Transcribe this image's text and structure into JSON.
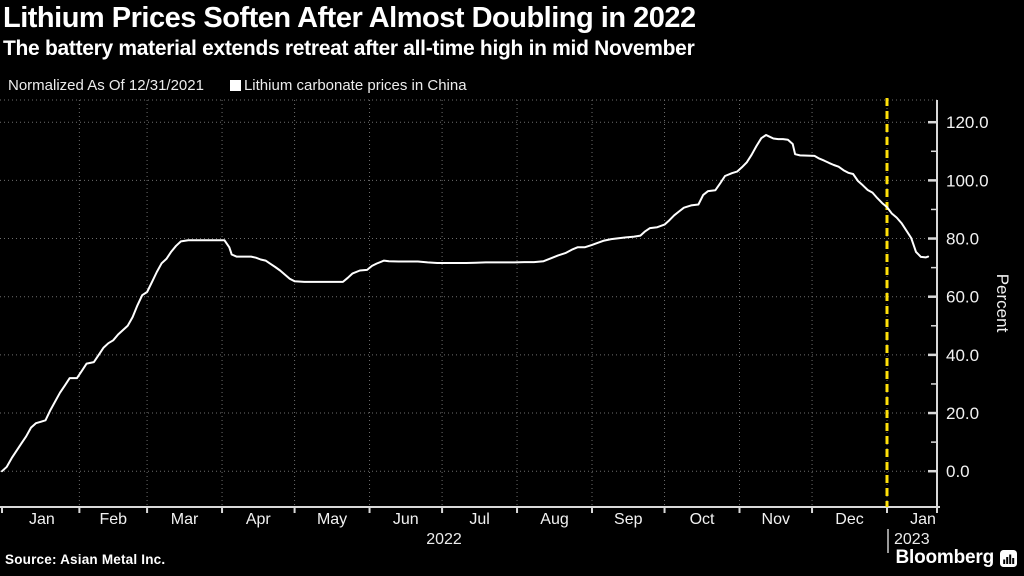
{
  "chart_data": {
    "type": "line",
    "title": "Lithium Prices Soften After Almost Doubling in 2022",
    "subtitle": "The battery material extends retreat after all-time high in mid November",
    "note": "Normalized As Of 12/31/2021",
    "legend": [
      {
        "label": "Lithium carbonate prices in China",
        "color": "#ffffff"
      }
    ],
    "ylabel": "Percent",
    "y_major_ticks": [
      0,
      20,
      40,
      60,
      80,
      100,
      120
    ],
    "y_tick_labels": [
      "0.0",
      "20.0",
      "40.0",
      "60.0",
      "80.0",
      "100.0",
      "120.0"
    ],
    "y_minor_step": 10,
    "ylim": [
      -13,
      128
    ],
    "grid": "dotted",
    "x_month_labels": [
      "Jan",
      "Feb",
      "Mar",
      "Apr",
      "May",
      "Jun",
      "Jul",
      "Aug",
      "Sep",
      "Oct",
      "Nov",
      "Dec",
      "Jan"
    ],
    "x_year_labels": [
      "2022",
      "2023"
    ],
    "event_line": {
      "at_day": 366,
      "color": "#ffe10a",
      "style": "dashed"
    },
    "series": [
      {
        "name": "Lithium carbonate prices in China",
        "color": "#ffffff",
        "points_day_value": [
          [
            0,
            0
          ],
          [
            2,
            1.5
          ],
          [
            4,
            4.5
          ],
          [
            6,
            7
          ],
          [
            8,
            9.5
          ],
          [
            10,
            12
          ],
          [
            12,
            15
          ],
          [
            14,
            16.5
          ],
          [
            16,
            17
          ],
          [
            18,
            17.5
          ],
          [
            20,
            21
          ],
          [
            22,
            24
          ],
          [
            24,
            27
          ],
          [
            26,
            29.5
          ],
          [
            28,
            32
          ],
          [
            31,
            32
          ],
          [
            33,
            34.5
          ],
          [
            35,
            37
          ],
          [
            38,
            37.5
          ],
          [
            40,
            40
          ],
          [
            42,
            42.5
          ],
          [
            44,
            44
          ],
          [
            46,
            45
          ],
          [
            48,
            47
          ],
          [
            50,
            48.5
          ],
          [
            52,
            50
          ],
          [
            54,
            53
          ],
          [
            56,
            57
          ],
          [
            58,
            60.5
          ],
          [
            60,
            61.6
          ],
          [
            62,
            65
          ],
          [
            64,
            68.5
          ],
          [
            66,
            71.5
          ],
          [
            68,
            73
          ],
          [
            70,
            75.5
          ],
          [
            72,
            77.5
          ],
          [
            74,
            79
          ],
          [
            77,
            79.4
          ],
          [
            82,
            79.4
          ],
          [
            87,
            79.4
          ],
          [
            92,
            79.4
          ],
          [
            94,
            77
          ],
          [
            95,
            74.5
          ],
          [
            97,
            73.8
          ],
          [
            100,
            73.8
          ],
          [
            103,
            73.8
          ],
          [
            105,
            73.4
          ],
          [
            107,
            72.8
          ],
          [
            109,
            72.4
          ],
          [
            111,
            71.3
          ],
          [
            113,
            70.2
          ],
          [
            115,
            69
          ],
          [
            117,
            67.6
          ],
          [
            119,
            66.2
          ],
          [
            121,
            65.3
          ],
          [
            125,
            65.1
          ],
          [
            129,
            65.1
          ],
          [
            133,
            65.1
          ],
          [
            137,
            65.1
          ],
          [
            141,
            65.1
          ],
          [
            143,
            66.5
          ],
          [
            145,
            68
          ],
          [
            148,
            69
          ],
          [
            151,
            69.2
          ],
          [
            153,
            70.6
          ],
          [
            155,
            71.4
          ],
          [
            158,
            72.4
          ],
          [
            160,
            72.2
          ],
          [
            164,
            72.1
          ],
          [
            168,
            72.1
          ],
          [
            172,
            72.1
          ],
          [
            176,
            71.8
          ],
          [
            180,
            71.6
          ],
          [
            184,
            71.6
          ],
          [
            188,
            71.6
          ],
          [
            192,
            71.6
          ],
          [
            196,
            71.7
          ],
          [
            200,
            71.8
          ],
          [
            204,
            71.8
          ],
          [
            208,
            71.8
          ],
          [
            212,
            71.8
          ],
          [
            216,
            71.9
          ],
          [
            220,
            71.9
          ],
          [
            224,
            72.2
          ],
          [
            227,
            73.2
          ],
          [
            230,
            74.2
          ],
          [
            233,
            75
          ],
          [
            236,
            76.3
          ],
          [
            238,
            77
          ],
          [
            241,
            77
          ],
          [
            244,
            77.8
          ],
          [
            246,
            78.4
          ],
          [
            249,
            79.3
          ],
          [
            252,
            79.8
          ],
          [
            255,
            80.1
          ],
          [
            258,
            80.4
          ],
          [
            261,
            80.6
          ],
          [
            264,
            81
          ],
          [
            266,
            82.5
          ],
          [
            268,
            83.6
          ],
          [
            271,
            83.9
          ],
          [
            274,
            84.8
          ],
          [
            276,
            86.3
          ],
          [
            278,
            88
          ],
          [
            280,
            89.3
          ],
          [
            282,
            90.6
          ],
          [
            285,
            91.4
          ],
          [
            288,
            91.7
          ],
          [
            290,
            95
          ],
          [
            292,
            96.3
          ],
          [
            295,
            96.6
          ],
          [
            297,
            99
          ],
          [
            299,
            101.5
          ],
          [
            302,
            102.5
          ],
          [
            304,
            103
          ],
          [
            306,
            104.5
          ],
          [
            308,
            106.2
          ],
          [
            310,
            108.8
          ],
          [
            312,
            111.8
          ],
          [
            314,
            114.5
          ],
          [
            316,
            115.6
          ],
          [
            317,
            115.2
          ],
          [
            319,
            114.4
          ],
          [
            321,
            114.2
          ],
          [
            323,
            114.2
          ],
          [
            325,
            114
          ],
          [
            327,
            112.5
          ],
          [
            328,
            109
          ],
          [
            330,
            108.6
          ],
          [
            333,
            108.5
          ],
          [
            336,
            108.4
          ],
          [
            338,
            107.5
          ],
          [
            340,
            106.8
          ],
          [
            342,
            106
          ],
          [
            344,
            105.3
          ],
          [
            346,
            104.7
          ],
          [
            348,
            103.5
          ],
          [
            350,
            102.6
          ],
          [
            352,
            102.2
          ],
          [
            354,
            99.8
          ],
          [
            356,
            98.3
          ],
          [
            358,
            96.7
          ],
          [
            360,
            95.8
          ],
          [
            362,
            93.9
          ],
          [
            364,
            92.2
          ],
          [
            366,
            90.8
          ],
          [
            368,
            88.6
          ],
          [
            370,
            87.2
          ],
          [
            372,
            85.3
          ],
          [
            374,
            82.8
          ],
          [
            376,
            80.2
          ],
          [
            377,
            77.8
          ],
          [
            378,
            75.4
          ],
          [
            380,
            73.7
          ],
          [
            382,
            73.5
          ],
          [
            383,
            73.8
          ]
        ]
      }
    ]
  },
  "source": "Source: Asian Metal Inc.",
  "branding": {
    "wordmark": "Bloomberg",
    "icon": "bar-chart-terminal-icon"
  },
  "colors": {
    "background": "#000000",
    "line": "#ffffff",
    "event_line": "#ffe10a",
    "grid": "#6e6e6e",
    "axis": "#d9d9d9",
    "text": "#ffffff"
  }
}
